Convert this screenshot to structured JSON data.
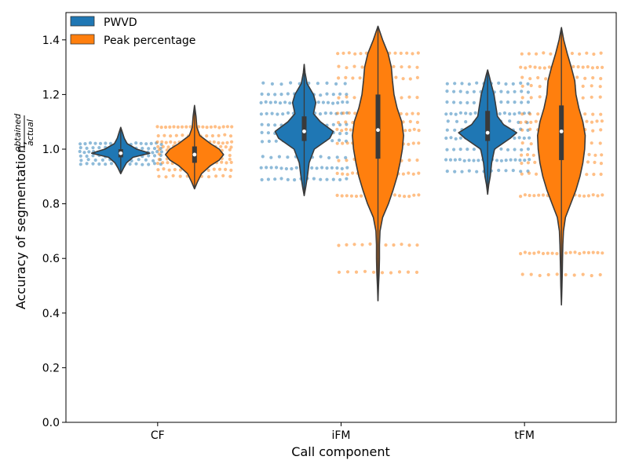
{
  "chart_data": {
    "type": "violin",
    "xlabel": "Call component",
    "ylabel_main": "Accuracy of segmentation, ",
    "ylabel_num": "obtained",
    "ylabel_den": "actual",
    "categories": [
      "CF",
      "iFM",
      "tFM"
    ],
    "ylim": [
      0.0,
      1.5
    ],
    "yticks": [
      0.0,
      0.2,
      0.4,
      0.6,
      0.8,
      1.0,
      1.2,
      1.4
    ],
    "ytick_labels": [
      "0.0",
      "0.2",
      "0.4",
      "0.6",
      "0.8",
      "1.0",
      "1.2",
      "1.4"
    ],
    "legend_position": "top-left",
    "series": [
      {
        "name": "PWVD",
        "color": "#1f77b4",
        "stats": [
          {
            "category": "CF",
            "min": 0.91,
            "q1": 0.97,
            "median": 0.985,
            "q3": 1.0,
            "max": 1.08
          },
          {
            "category": "iFM",
            "min": 0.83,
            "q1": 1.03,
            "median": 1.065,
            "q3": 1.12,
            "max": 1.31
          },
          {
            "category": "tFM",
            "min": 0.835,
            "q1": 1.03,
            "median": 1.06,
            "q3": 1.14,
            "max": 1.29
          }
        ],
        "profiles": [
          [
            [
              0.91,
              0.0
            ],
            [
              0.93,
              0.09
            ],
            [
              0.95,
              0.2
            ],
            [
              0.97,
              0.42
            ],
            [
              0.985,
              1.0
            ],
            [
              1.0,
              0.55
            ],
            [
              1.02,
              0.22
            ],
            [
              1.04,
              0.12
            ],
            [
              1.06,
              0.06
            ],
            [
              1.08,
              0.0
            ]
          ],
          [
            [
              0.83,
              0.0
            ],
            [
              0.86,
              0.05
            ],
            [
              0.9,
              0.11
            ],
            [
              0.95,
              0.17
            ],
            [
              1.0,
              0.35
            ],
            [
              1.04,
              0.88
            ],
            [
              1.065,
              1.0
            ],
            [
              1.1,
              0.56
            ],
            [
              1.13,
              0.32
            ],
            [
              1.17,
              0.4
            ],
            [
              1.2,
              0.32
            ],
            [
              1.24,
              0.1
            ],
            [
              1.28,
              0.03
            ],
            [
              1.31,
              0.0
            ]
          ],
          [
            [
              0.835,
              0.0
            ],
            [
              0.87,
              0.04
            ],
            [
              0.9,
              0.09
            ],
            [
              0.95,
              0.14
            ],
            [
              1.0,
              0.24
            ],
            [
              1.04,
              0.78
            ],
            [
              1.06,
              1.0
            ],
            [
              1.09,
              0.55
            ],
            [
              1.12,
              0.34
            ],
            [
              1.16,
              0.28
            ],
            [
              1.2,
              0.22
            ],
            [
              1.24,
              0.12
            ],
            [
              1.27,
              0.05
            ],
            [
              1.29,
              0.0
            ]
          ]
        ],
        "swarm": [
          {
            "y": [
              0.945,
              0.96,
              0.975,
              0.99,
              1.005,
              1.02
            ],
            "half_width": 55
          },
          {
            "y": [
              0.89,
              0.93,
              0.97,
              1.03,
              1.06,
              1.09,
              1.13,
              1.17,
              1.2,
              1.24
            ],
            "half_width": 58
          },
          {
            "y": [
              0.92,
              0.96,
              1.0,
              1.04,
              1.07,
              1.1,
              1.13,
              1.17,
              1.21,
              1.24
            ],
            "half_width": 56
          }
        ]
      },
      {
        "name": "Peak percentage",
        "color": "#ff7f0e",
        "stats": [
          {
            "category": "CF",
            "min": 0.855,
            "q1": 0.95,
            "median": 0.98,
            "q3": 1.01,
            "max": 1.16
          },
          {
            "category": "iFM",
            "min": 0.445,
            "q1": 0.965,
            "median": 1.07,
            "q3": 1.2,
            "max": 1.45
          },
          {
            "category": "tFM",
            "min": 0.43,
            "q1": 0.96,
            "median": 1.065,
            "q3": 1.16,
            "max": 1.445
          }
        ],
        "profiles": [
          [
            [
              0.855,
              0.0
            ],
            [
              0.88,
              0.1
            ],
            [
              0.91,
              0.24
            ],
            [
              0.94,
              0.55
            ],
            [
              0.96,
              0.85
            ],
            [
              0.98,
              1.0
            ],
            [
              1.0,
              0.85
            ],
            [
              1.02,
              0.55
            ],
            [
              1.05,
              0.18
            ],
            [
              1.08,
              0.08
            ],
            [
              1.12,
              0.05
            ],
            [
              1.16,
              0.0
            ]
          ],
          [
            [
              0.445,
              0.0
            ],
            [
              0.5,
              0.02
            ],
            [
              0.55,
              0.04
            ],
            [
              0.6,
              0.05
            ],
            [
              0.65,
              0.05
            ],
            [
              0.7,
              0.07
            ],
            [
              0.75,
              0.16
            ],
            [
              0.8,
              0.36
            ],
            [
              0.85,
              0.52
            ],
            [
              0.9,
              0.66
            ],
            [
              0.95,
              0.76
            ],
            [
              1.0,
              0.84
            ],
            [
              1.05,
              0.88
            ],
            [
              1.1,
              0.82
            ],
            [
              1.15,
              0.66
            ],
            [
              1.2,
              0.55
            ],
            [
              1.25,
              0.5
            ],
            [
              1.3,
              0.46
            ],
            [
              1.35,
              0.35
            ],
            [
              1.4,
              0.16
            ],
            [
              1.45,
              0.0
            ]
          ],
          [
            [
              0.43,
              0.0
            ],
            [
              0.5,
              0.02
            ],
            [
              0.55,
              0.03
            ],
            [
              0.6,
              0.04
            ],
            [
              0.65,
              0.05
            ],
            [
              0.7,
              0.07
            ],
            [
              0.75,
              0.14
            ],
            [
              0.8,
              0.32
            ],
            [
              0.85,
              0.5
            ],
            [
              0.9,
              0.64
            ],
            [
              0.95,
              0.74
            ],
            [
              1.0,
              0.8
            ],
            [
              1.05,
              0.82
            ],
            [
              1.1,
              0.74
            ],
            [
              1.15,
              0.6
            ],
            [
              1.2,
              0.5
            ],
            [
              1.25,
              0.46
            ],
            [
              1.3,
              0.34
            ],
            [
              1.35,
              0.2
            ],
            [
              1.4,
              0.08
            ],
            [
              1.445,
              0.0
            ]
          ]
        ],
        "swarm": [
          {
            "y": [
              0.9,
              0.925,
              0.95,
              0.965,
              0.98,
              0.995,
              1.01,
              1.025,
              1.05,
              1.08
            ],
            "half_width": 50
          },
          {
            "y": [
              0.55,
              0.65,
              0.83,
              0.91,
              0.96,
              1.02,
              1.07,
              1.1,
              1.13,
              1.19,
              1.26,
              1.3,
              1.35
            ],
            "half_width": 55
          },
          {
            "y": [
              0.54,
              0.62,
              0.83,
              0.91,
              0.95,
              0.98,
              1.02,
              1.07,
              1.1,
              1.13,
              1.19,
              1.23,
              1.26,
              1.3,
              1.35
            ],
            "half_width": 55
          }
        ]
      }
    ]
  }
}
